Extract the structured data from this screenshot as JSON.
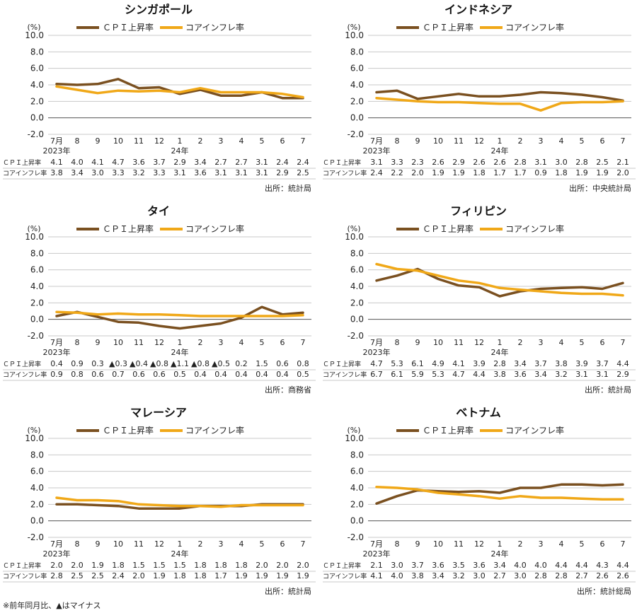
{
  "legend": {
    "cpi": "ＣＰＩ上昇率",
    "core": "コアインフレ率"
  },
  "colors": {
    "cpi": "#7a5020",
    "core": "#f0a818",
    "grid": "#c8c8c8",
    "axis": "#555555"
  },
  "y_unit": "(%)",
  "year_labels": {
    "first": "2023年",
    "second": "24年"
  },
  "row_labels": {
    "cpi": "ＣＰＩ上昇率",
    "core": "コアインフレ率"
  },
  "footnote": "※前年同月比、▲はマイナス",
  "chart_data": [
    {
      "type": "line",
      "title": "シンガポール",
      "source": "出所：統計局",
      "categories": [
        "7月",
        "8",
        "9",
        "10",
        "11",
        "12",
        "1",
        "2",
        "3",
        "4",
        "5",
        "6",
        "7"
      ],
      "yticks": [
        "10.0",
        "8.0",
        "6.0",
        "4.0",
        "2.0",
        "0.0",
        "-2.0"
      ],
      "ylim": [
        -2,
        10
      ],
      "series": [
        {
          "name": "ＣＰＩ上昇率",
          "values": [
            4.1,
            4.0,
            4.1,
            4.7,
            3.6,
            3.7,
            2.9,
            3.4,
            2.7,
            2.7,
            3.1,
            2.4,
            2.4
          ],
          "labels": [
            "4.1",
            "4.0",
            "4.1",
            "4.7",
            "3.6",
            "3.7",
            "2.9",
            "3.4",
            "2.7",
            "2.7",
            "3.1",
            "2.4",
            "2.4"
          ]
        },
        {
          "name": "コアインフレ率",
          "values": [
            3.8,
            3.4,
            3.0,
            3.3,
            3.2,
            3.3,
            3.1,
            3.6,
            3.1,
            3.1,
            3.1,
            2.9,
            2.5
          ],
          "labels": [
            "3.8",
            "3.4",
            "3.0",
            "3.3",
            "3.2",
            "3.3",
            "3.1",
            "3.6",
            "3.1",
            "3.1",
            "3.1",
            "2.9",
            "2.5"
          ]
        }
      ]
    },
    {
      "type": "line",
      "title": "インドネシア",
      "source": "出所：中央統計局",
      "categories": [
        "7月",
        "8",
        "9",
        "10",
        "11",
        "12",
        "1",
        "2",
        "3",
        "4",
        "5",
        "6",
        "7"
      ],
      "yticks": [
        "10.0",
        "8.0",
        "6.0",
        "4.0",
        "2.0",
        "0.0",
        "-2.0"
      ],
      "ylim": [
        -2,
        10
      ],
      "series": [
        {
          "name": "ＣＰＩ上昇率",
          "values": [
            3.1,
            3.3,
            2.3,
            2.6,
            2.9,
            2.6,
            2.6,
            2.8,
            3.1,
            3.0,
            2.8,
            2.5,
            2.1
          ],
          "labels": [
            "3.1",
            "3.3",
            "2.3",
            "2.6",
            "2.9",
            "2.6",
            "2.6",
            "2.8",
            "3.1",
            "3.0",
            "2.8",
            "2.5",
            "2.1"
          ]
        },
        {
          "name": "コアインフレ率",
          "values": [
            2.4,
            2.2,
            2.0,
            1.9,
            1.9,
            1.8,
            1.7,
            1.7,
            0.9,
            1.8,
            1.9,
            1.9,
            2.0
          ],
          "labels": [
            "2.4",
            "2.2",
            "2.0",
            "1.9",
            "1.9",
            "1.8",
            "1.7",
            "1.7",
            "0.9",
            "1.8",
            "1.9",
            "1.9",
            "2.0"
          ]
        }
      ]
    },
    {
      "type": "line",
      "title": "タイ",
      "source": "出所：商務省",
      "categories": [
        "7月",
        "8",
        "9",
        "10",
        "11",
        "12",
        "1",
        "2",
        "3",
        "4",
        "5",
        "6",
        "7"
      ],
      "yticks": [
        "10.0",
        "8.0",
        "6.0",
        "4.0",
        "2.0",
        "0.0",
        "-2.0"
      ],
      "ylim": [
        -2,
        10
      ],
      "series": [
        {
          "name": "ＣＰＩ上昇率",
          "values": [
            0.4,
            0.9,
            0.3,
            -0.3,
            -0.4,
            -0.8,
            -1.1,
            -0.8,
            -0.5,
            0.2,
            1.5,
            0.6,
            0.8
          ],
          "labels": [
            "0.4",
            "0.9",
            "0.3",
            "▲0.3",
            "▲0.4",
            "▲0.8",
            "▲1.1",
            "▲0.8",
            "▲0.5",
            "0.2",
            "1.5",
            "0.6",
            "0.8"
          ]
        },
        {
          "name": "コアインフレ率",
          "values": [
            0.9,
            0.8,
            0.6,
            0.7,
            0.6,
            0.6,
            0.5,
            0.4,
            0.4,
            0.4,
            0.4,
            0.4,
            0.5
          ],
          "labels": [
            "0.9",
            "0.8",
            "0.6",
            "0.7",
            "0.6",
            "0.6",
            "0.5",
            "0.4",
            "0.4",
            "0.4",
            "0.4",
            "0.4",
            "0.5"
          ]
        }
      ]
    },
    {
      "type": "line",
      "title": "フィリピン",
      "source": "出所：統計局",
      "categories": [
        "7月",
        "8",
        "9",
        "10",
        "11",
        "12",
        "1",
        "2",
        "3",
        "4",
        "5",
        "6",
        "7"
      ],
      "yticks": [
        "10.0",
        "8.0",
        "6.0",
        "4.0",
        "2.0",
        "0.0",
        "-2.0"
      ],
      "ylim": [
        -2,
        10
      ],
      "series": [
        {
          "name": "ＣＰＩ上昇率",
          "values": [
            4.7,
            5.3,
            6.1,
            4.9,
            4.1,
            3.9,
            2.8,
            3.4,
            3.7,
            3.8,
            3.9,
            3.7,
            4.4
          ],
          "labels": [
            "4.7",
            "5.3",
            "6.1",
            "4.9",
            "4.1",
            "3.9",
            "2.8",
            "3.4",
            "3.7",
            "3.8",
            "3.9",
            "3.7",
            "4.4"
          ]
        },
        {
          "name": "コアインフレ率",
          "values": [
            6.7,
            6.1,
            5.9,
            5.3,
            4.7,
            4.4,
            3.8,
            3.6,
            3.4,
            3.2,
            3.1,
            3.1,
            2.9
          ],
          "labels": [
            "6.7",
            "6.1",
            "5.9",
            "5.3",
            "4.7",
            "4.4",
            "3.8",
            "3.6",
            "3.4",
            "3.2",
            "3.1",
            "3.1",
            "2.9"
          ]
        }
      ]
    },
    {
      "type": "line",
      "title": "マレーシア",
      "source": "出所：統計局",
      "categories": [
        "7月",
        "8",
        "9",
        "10",
        "11",
        "12",
        "1",
        "2",
        "3",
        "4",
        "5",
        "6",
        "7"
      ],
      "yticks": [
        "10.0",
        "8.0",
        "6.0",
        "4.0",
        "2.0",
        "0.0",
        "-2.0"
      ],
      "ylim": [
        -2,
        10
      ],
      "series": [
        {
          "name": "ＣＰＩ上昇率",
          "values": [
            2.0,
            2.0,
            1.9,
            1.8,
            1.5,
            1.5,
            1.5,
            1.8,
            1.8,
            1.8,
            2.0,
            2.0,
            2.0
          ],
          "labels": [
            "2.0",
            "2.0",
            "1.9",
            "1.8",
            "1.5",
            "1.5",
            "1.5",
            "1.8",
            "1.8",
            "1.8",
            "2.0",
            "2.0",
            "2.0"
          ]
        },
        {
          "name": "コアインフレ率",
          "values": [
            2.8,
            2.5,
            2.5,
            2.4,
            2.0,
            1.9,
            1.8,
            1.8,
            1.7,
            1.9,
            1.9,
            1.9,
            1.9
          ],
          "labels": [
            "2.8",
            "2.5",
            "2.5",
            "2.4",
            "2.0",
            "1.9",
            "1.8",
            "1.8",
            "1.7",
            "1.9",
            "1.9",
            "1.9",
            "1.9"
          ]
        }
      ]
    },
    {
      "type": "line",
      "title": "ベトナム",
      "source": "出所：統計総局",
      "categories": [
        "7月",
        "8",
        "9",
        "10",
        "11",
        "12",
        "1",
        "2",
        "3",
        "4",
        "5",
        "6",
        "7"
      ],
      "yticks": [
        "10.0",
        "8.0",
        "6.0",
        "4.0",
        "2.0",
        "0.0",
        "-2.0"
      ],
      "ylim": [
        -2,
        10
      ],
      "series": [
        {
          "name": "ＣＰＩ上昇率",
          "values": [
            2.1,
            3.0,
            3.7,
            3.6,
            3.5,
            3.6,
            3.4,
            4.0,
            4.0,
            4.4,
            4.4,
            4.3,
            4.4
          ],
          "labels": [
            "2.1",
            "3.0",
            "3.7",
            "3.6",
            "3.5",
            "3.6",
            "3.4",
            "4.0",
            "4.0",
            "4.4",
            "4.4",
            "4.3",
            "4.4"
          ]
        },
        {
          "name": "コアインフレ率",
          "values": [
            4.1,
            4.0,
            3.8,
            3.4,
            3.2,
            3.0,
            2.7,
            3.0,
            2.8,
            2.8,
            2.7,
            2.6,
            2.6
          ],
          "labels": [
            "4.1",
            "4.0",
            "3.8",
            "3.4",
            "3.2",
            "3.0",
            "2.7",
            "3.0",
            "2.8",
            "2.8",
            "2.7",
            "2.6",
            "2.6"
          ]
        }
      ]
    }
  ]
}
